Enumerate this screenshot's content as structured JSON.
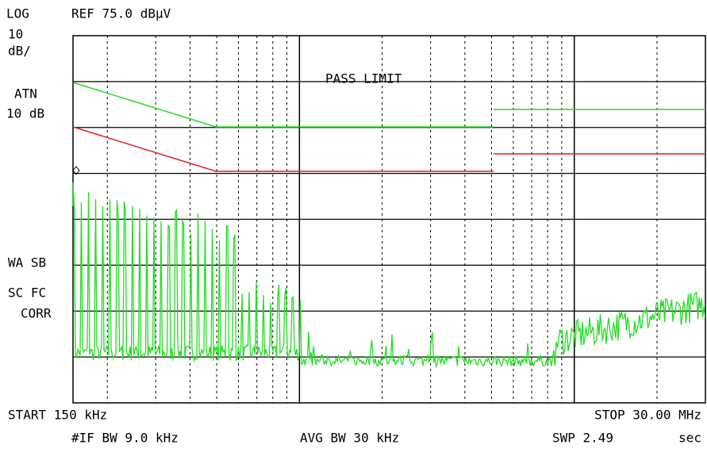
{
  "screen": {
    "header": {
      "scale": "LOG",
      "reference": "REF 75.0 dBµV"
    },
    "left_labels": [
      "10",
      "dB/",
      "ATN",
      "10 dB"
    ],
    "status_labels": [
      "WA SB",
      "SC FC",
      "CORR"
    ],
    "plot_label": "PASS LIMIT",
    "footer": {
      "start": "START 150 kHz",
      "stop": "STOP 30.00 MHz",
      "if_bw": "#IF BW 9.0 kHz",
      "avg_bw": "AVG BW 30 kHz",
      "sweep": "SWP 2.49",
      "sweep_unit": "sec"
    }
  }
}
